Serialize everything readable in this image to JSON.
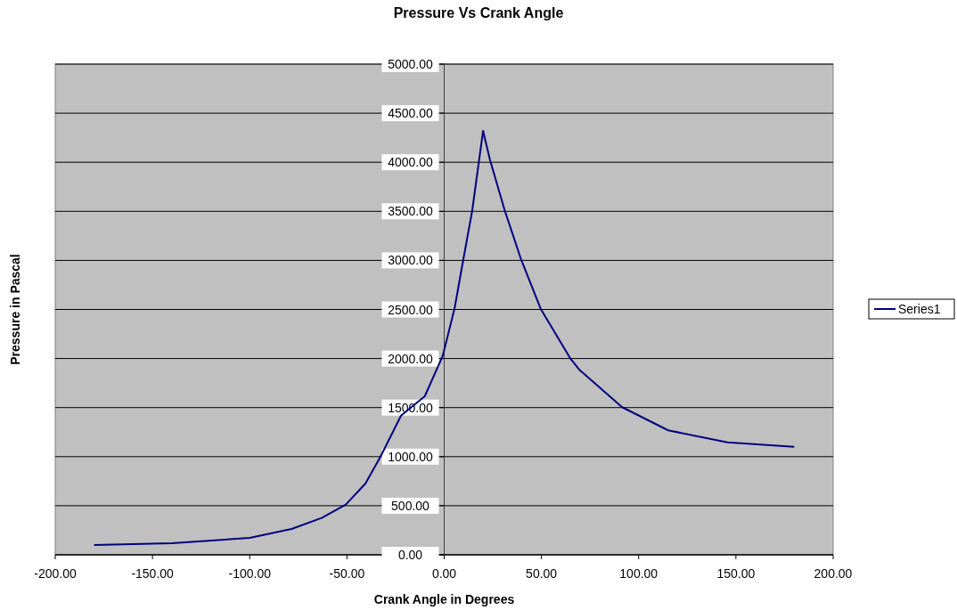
{
  "chart_data": {
    "type": "line",
    "title": "Pressure  Vs Crank Angle",
    "xlabel": "Crank Angle in Degrees",
    "ylabel": "Pressure in Pascal",
    "series": [
      {
        "name": "Series1",
        "color": "#000080",
        "x": [
          -180,
          -140,
          -100,
          -78.5,
          -63,
          -50.6,
          -40.5,
          -32.8,
          -22.2,
          -10,
          -0.8,
          5.3,
          9.8,
          14.4,
          20,
          23.6,
          31.2,
          39.6,
          49.6,
          64.8,
          69.4,
          91.5,
          115.2,
          145.7,
          180
        ],
        "values": [
          100,
          118,
          172,
          263,
          375,
          511,
          726,
          998,
          1418,
          1615,
          2024,
          2507,
          3006,
          3505,
          4320,
          4020,
          3505,
          3006,
          2507,
          2003,
          1888,
          1504,
          1268,
          1146,
          1100
        ]
      }
    ],
    "xlim": [
      -200,
      200
    ],
    "xticks": [
      {
        "value": -200,
        "label": "-200.00"
      },
      {
        "value": -150,
        "label": "-150.00"
      },
      {
        "value": -100,
        "label": "-100.00"
      },
      {
        "value": -50,
        "label": "-50.00"
      },
      {
        "value": 0,
        "label": "0.00"
      },
      {
        "value": 50,
        "label": "50.00"
      },
      {
        "value": 100,
        "label": "100.00"
      },
      {
        "value": 150,
        "label": "150.00"
      },
      {
        "value": 200,
        "label": "200.00"
      }
    ],
    "ylim": [
      0,
      5000
    ],
    "yticks": [
      {
        "value": 0,
        "label": "0.00"
      },
      {
        "value": 500,
        "label": "500.00"
      },
      {
        "value": 1000,
        "label": "1000.00"
      },
      {
        "value": 1500,
        "label": "1500.00"
      },
      {
        "value": 2000,
        "label": "2000.00"
      },
      {
        "value": 2500,
        "label": "2500.00"
      },
      {
        "value": 3000,
        "label": "3000.00"
      },
      {
        "value": 3500,
        "label": "3500.00"
      },
      {
        "value": 4000,
        "label": "4000.00"
      },
      {
        "value": 4500,
        "label": "4500.00"
      },
      {
        "value": 5000,
        "label": "5000.00"
      }
    ],
    "grid": "y",
    "legend": "right",
    "marker": "none",
    "line_style": "solid"
  }
}
